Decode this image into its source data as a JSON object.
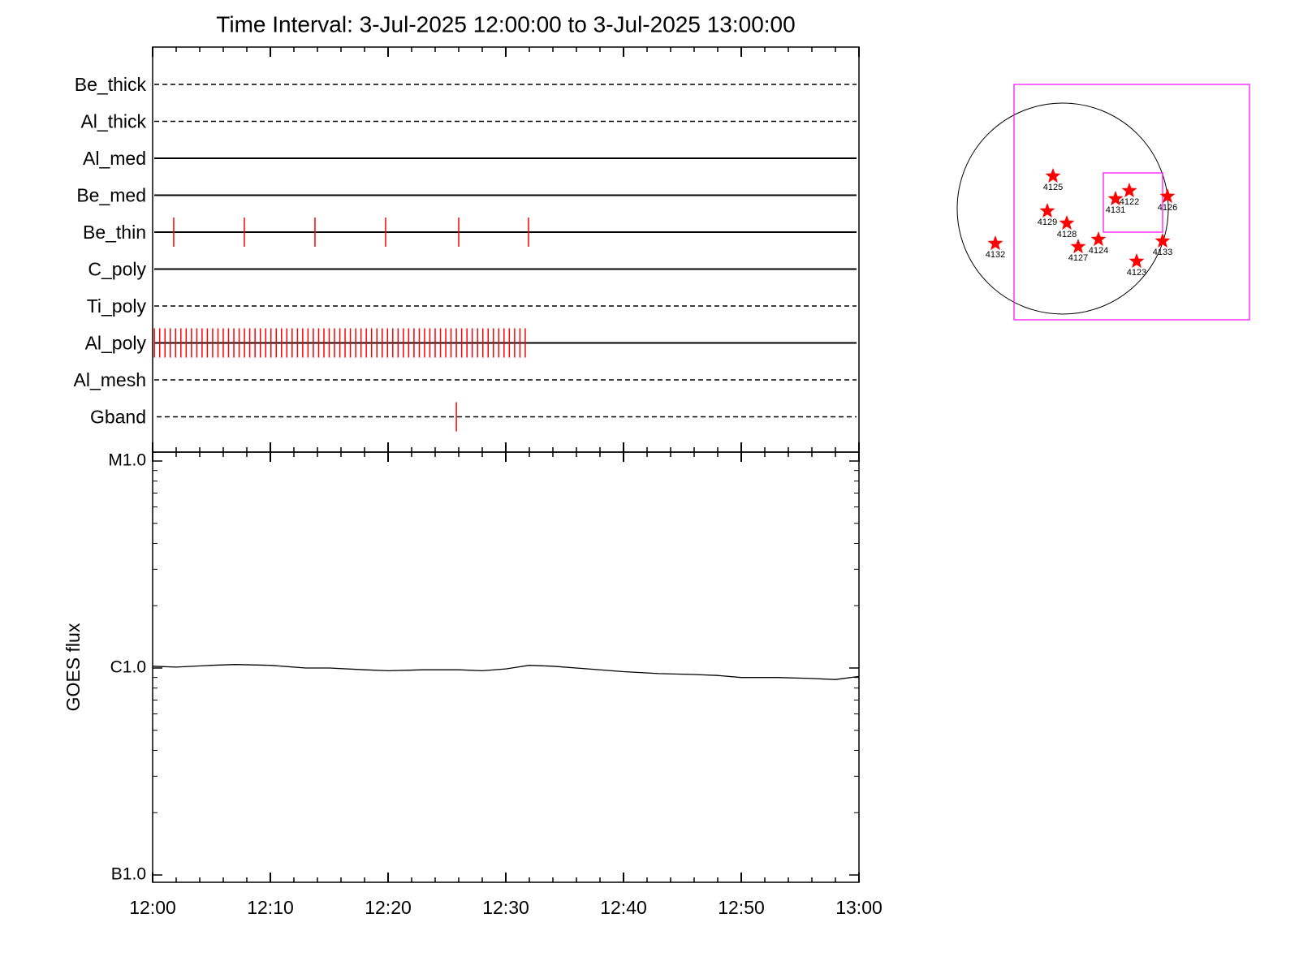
{
  "chart_data": [
    {
      "type": "timeline",
      "title": "Time Interval:  3-Jul-2025 12:00:00 to  3-Jul-2025 13:00:00",
      "categories": [
        "Be_thick",
        "Al_thick",
        "Al_med",
        "Be_med",
        "Be_thin",
        "C_poly",
        "Ti_poly",
        "Al_poly",
        "Al_mesh",
        "Gband"
      ],
      "line_styles": [
        "dashed",
        "dashed",
        "solid",
        "solid",
        "solid",
        "solid",
        "dashed",
        "solid",
        "dashed",
        "dashed"
      ],
      "events": [
        [],
        [],
        [],
        [],
        [
          1.79,
          7.79,
          13.79,
          19.79,
          26.0,
          31.93
        ],
        [],
        [],
        [
          0.15,
          0.6,
          1.05,
          1.5,
          1.95,
          2.4,
          2.85,
          3.3,
          3.75,
          4.2,
          4.65,
          5.1,
          5.55,
          6.0,
          6.45,
          6.9,
          7.35,
          7.8,
          8.25,
          8.7,
          9.15,
          9.6,
          10.05,
          10.5,
          10.95,
          11.4,
          11.85,
          12.3,
          12.75,
          13.2,
          13.65,
          14.1,
          14.55,
          15.0,
          15.45,
          15.9,
          16.35,
          16.8,
          17.25,
          17.7,
          18.15,
          18.6,
          19.05,
          19.5,
          19.95,
          20.4,
          20.85,
          21.3,
          21.75,
          22.2,
          22.65,
          23.1,
          23.55,
          24.0,
          24.45,
          24.9,
          25.35,
          25.8,
          26.25,
          26.7,
          27.15,
          27.6,
          28.05,
          28.5,
          28.95,
          29.4,
          29.85,
          30.3,
          30.75,
          31.2,
          31.65
        ],
        [],
        [
          25.8
        ]
      ],
      "color": "#ff0000",
      "xlim": [
        0,
        60
      ],
      "xticks": [
        0,
        10,
        20,
        30,
        40,
        50,
        60
      ],
      "xminorticks": [
        2,
        4,
        6,
        8,
        12,
        14,
        16,
        18,
        22,
        24,
        26,
        28,
        32,
        34,
        36,
        38,
        42,
        44,
        46,
        48,
        52,
        54,
        56,
        58
      ]
    },
    {
      "type": "line",
      "y_label": "GOES flux",
      "x": [
        0,
        2,
        5,
        7,
        10,
        13,
        15,
        18,
        20,
        23,
        26,
        28,
        30,
        32,
        34,
        37,
        40,
        43,
        46,
        48,
        50,
        53,
        56,
        58,
        60
      ],
      "values": [
        1.02e-06,
        1.01e-06,
        1.03e-06,
        1.04e-06,
        1.03e-06,
        1e-06,
        1e-06,
        9.8e-07,
        9.7e-07,
        9.8e-07,
        9.8e-07,
        9.7e-07,
        9.9e-07,
        1.03e-06,
        1.02e-06,
        9.9e-07,
        9.6e-07,
        9.4e-07,
        9.3e-07,
        9.2e-07,
        9e-07,
        9e-07,
        8.9e-07,
        8.8e-07,
        9.1e-07
      ],
      "color": "#000000",
      "log_scale": true,
      "xlim": [
        0,
        60
      ],
      "xticks": [
        {
          "value": 0,
          "label": "12:00"
        },
        {
          "value": 10,
          "label": "12:10"
        },
        {
          "value": 20,
          "label": "12:20"
        },
        {
          "value": 30,
          "label": "12:30"
        },
        {
          "value": 40,
          "label": "12:40"
        },
        {
          "value": 50,
          "label": "12:50"
        },
        {
          "value": 60,
          "label": "13:00"
        }
      ],
      "xminorticks": [
        2,
        4,
        6,
        8,
        12,
        14,
        16,
        18,
        22,
        24,
        26,
        28,
        32,
        34,
        36,
        38,
        42,
        44,
        46,
        48,
        52,
        54,
        56,
        58
      ],
      "ylim": [
        1e-07,
        1e-05
      ],
      "yticks": [
        {
          "value": 1e-07,
          "label": "B1.0"
        },
        {
          "value": 1e-06,
          "label": "C1.0"
        },
        {
          "value": 1e-05,
          "label": "M1.0"
        }
      ],
      "yminorticks": [
        2e-07,
        3e-07,
        4e-07,
        5e-07,
        6e-07,
        7e-07,
        8e-07,
        9e-07,
        2e-06,
        3e-06,
        4e-06,
        5e-06,
        6e-06,
        7e-06,
        8e-06,
        9e-06
      ]
    }
  ],
  "map": {
    "regions": [
      "4125",
      "4129",
      "4128",
      "4127",
      "4124",
      "4131",
      "4122",
      "4126",
      "4133",
      "4123",
      "4132"
    ],
    "star_color": "#ff0000",
    "box_color": "#ff00ff"
  }
}
